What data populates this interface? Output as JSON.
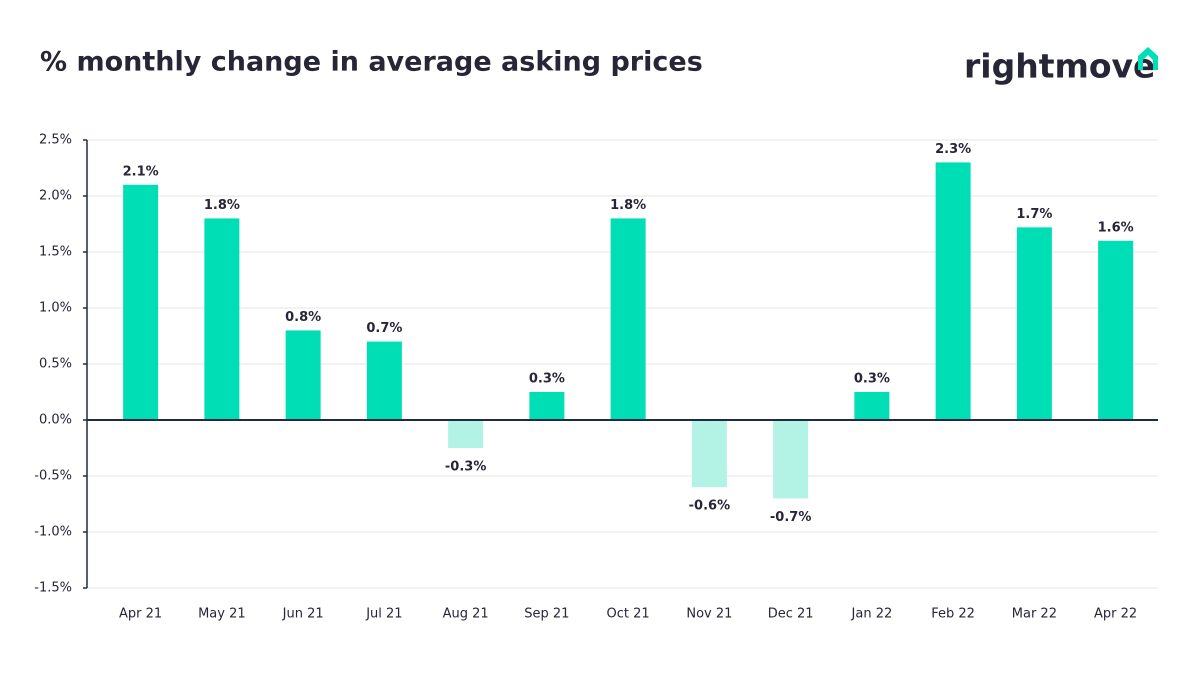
{
  "chart_data": {
    "type": "bar",
    "title": "% monthly change in average asking prices",
    "logo": "rightmove",
    "categories": [
      "Apr 21",
      "May 21",
      "Jun 21",
      "Jul 21",
      "Aug 21",
      "Sep 21",
      "Oct 21",
      "Nov 21",
      "Dec 21",
      "Jan 22",
      "Feb 22",
      "Mar 22",
      "Apr 22"
    ],
    "values": [
      2.1,
      1.8,
      0.8,
      0.7,
      -0.25,
      0.25,
      1.8,
      -0.6,
      -0.7,
      0.25,
      2.3,
      1.72,
      1.6
    ],
    "value_labels": [
      "2.1%",
      "1.8%",
      "0.8%",
      "0.7%",
      "-0.3%",
      "0.3%",
      "1.8%",
      "-0.6%",
      "-0.7%",
      "0.3%",
      "2.3%",
      "1.7%",
      "1.6%"
    ],
    "color": "#00deb6",
    "negative_color": "#b3f3e6",
    "ylim": [
      -1.5,
      2.5
    ],
    "yticks": [
      {
        "value": -1.5,
        "label": "-1.5%"
      },
      {
        "value": -1.0,
        "label": "-1.0%"
      },
      {
        "value": -0.5,
        "label": "-0.5%"
      },
      {
        "value": 0,
        "label": "0.0%"
      },
      {
        "value": 0.5,
        "label": "0.5%"
      },
      {
        "value": 1.0,
        "label": "1.0%"
      },
      {
        "value": 1.5,
        "label": "1.5%"
      },
      {
        "value": 2.0,
        "label": "2.0%"
      },
      {
        "value": 2.5,
        "label": "2.5%"
      }
    ],
    "grid": true
  }
}
